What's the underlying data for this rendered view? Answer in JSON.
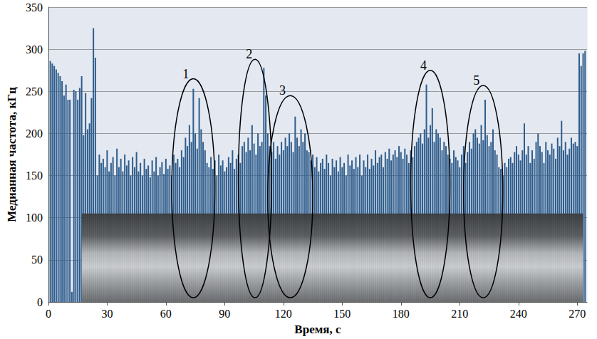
{
  "chart_data": {
    "type": "bar",
    "x_label": "Время, с",
    "y_label": "Медианная частота, кГц",
    "color": "#2f5d8c",
    "grid": true,
    "xlim": [
      0,
      275
    ],
    "xticks": [
      0,
      30,
      60,
      90,
      120,
      150,
      180,
      210,
      240,
      270
    ],
    "ylim": [
      0,
      350
    ],
    "yticks": [
      0,
      50,
      100,
      150,
      200,
      250,
      300,
      350
    ],
    "x": [
      1,
      2,
      3,
      4,
      5,
      6,
      7,
      8,
      9,
      10,
      11,
      12,
      13,
      14,
      15,
      16,
      17,
      18,
      19,
      20,
      21,
      22,
      23,
      24,
      25,
      26,
      27,
      28,
      29,
      30,
      31,
      32,
      33,
      34,
      35,
      36,
      37,
      38,
      39,
      40,
      41,
      42,
      43,
      44,
      45,
      46,
      47,
      48,
      49,
      50,
      51,
      52,
      53,
      54,
      55,
      56,
      57,
      58,
      59,
      60,
      61,
      62,
      63,
      64,
      65,
      66,
      67,
      68,
      69,
      70,
      71,
      72,
      73,
      74,
      75,
      76,
      77,
      78,
      79,
      80,
      81,
      82,
      83,
      84,
      85,
      86,
      87,
      88,
      89,
      90,
      91,
      92,
      93,
      94,
      95,
      96,
      97,
      98,
      99,
      100,
      101,
      102,
      103,
      104,
      105,
      106,
      107,
      108,
      109,
      110,
      111,
      112,
      113,
      114,
      115,
      116,
      117,
      118,
      119,
      120,
      121,
      122,
      123,
      124,
      125,
      126,
      127,
      128,
      129,
      130,
      131,
      132,
      133,
      134,
      135,
      136,
      137,
      138,
      139,
      140,
      141,
      142,
      143,
      144,
      145,
      146,
      147,
      148,
      149,
      150,
      151,
      152,
      153,
      154,
      155,
      156,
      157,
      158,
      159,
      160,
      161,
      162,
      163,
      164,
      165,
      166,
      167,
      168,
      169,
      170,
      171,
      172,
      173,
      174,
      175,
      176,
      177,
      178,
      179,
      180,
      181,
      182,
      183,
      184,
      185,
      186,
      187,
      188,
      189,
      190,
      191,
      192,
      193,
      194,
      195,
      196,
      197,
      198,
      199,
      200,
      201,
      202,
      203,
      204,
      205,
      206,
      207,
      208,
      209,
      210,
      211,
      212,
      213,
      214,
      215,
      216,
      217,
      218,
      219,
      220,
      221,
      222,
      223,
      224,
      225,
      226,
      227,
      228,
      229,
      230,
      231,
      232,
      233,
      234,
      235,
      236,
      237,
      238,
      239,
      240,
      241,
      242,
      243,
      244,
      245,
      246,
      247,
      248,
      249,
      250,
      251,
      252,
      253,
      254,
      255,
      256,
      257,
      258,
      259,
      260,
      261,
      262,
      263,
      264,
      265,
      266,
      267,
      268,
      269,
      270,
      271,
      272,
      273,
      274
    ],
    "values": [
      286,
      283,
      280,
      276,
      272,
      268,
      262,
      245,
      258,
      240,
      240,
      12,
      252,
      250,
      240,
      254,
      268,
      198,
      248,
      205,
      212,
      242,
      325,
      290,
      150,
      175,
      165,
      170,
      160,
      180,
      155,
      165,
      172,
      150,
      182,
      160,
      170,
      155,
      175,
      162,
      168,
      150,
      172,
      160,
      178,
      155,
      165,
      150,
      170,
      158,
      162,
      148,
      168,
      155,
      172,
      150,
      160,
      166,
      152,
      170,
      158,
      162,
      150,
      175,
      165,
      170,
      160,
      180,
      172,
      195,
      185,
      210,
      190,
      253,
      200,
      182,
      242,
      205,
      190,
      180,
      165,
      160,
      172,
      158,
      168,
      150,
      175,
      162,
      168,
      155,
      160,
      172,
      165,
      180,
      158,
      170,
      175,
      165,
      185,
      190,
      178,
      195,
      180,
      210,
      188,
      175,
      200,
      185,
      190,
      278,
      245,
      200,
      185,
      178,
      190,
      170,
      185,
      175,
      190,
      180,
      195,
      185,
      200,
      190,
      178,
      220,
      195,
      185,
      205,
      190,
      200,
      180,
      178,
      168,
      175,
      160,
      172,
      155,
      165,
      170,
      158,
      175,
      165,
      150,
      170,
      160,
      168,
      155,
      172,
      160,
      165,
      150,
      175,
      162,
      168,
      158,
      172,
      160,
      175,
      150,
      168,
      160,
      175,
      158,
      170,
      162,
      180,
      165,
      172,
      175,
      160,
      178,
      170,
      182,
      168,
      175,
      180,
      172,
      185,
      178,
      170,
      182,
      175,
      165,
      180,
      172,
      185,
      190,
      195,
      200,
      188,
      205,
      258,
      195,
      210,
      230,
      190,
      205,
      200,
      195,
      180,
      190,
      185,
      175,
      170,
      165,
      180,
      172,
      168,
      160,
      175,
      185,
      165,
      178,
      190,
      182,
      200,
      205,
      195,
      188,
      210,
      192,
      240,
      198,
      185,
      190,
      205,
      180,
      175,
      160,
      158,
      150,
      165,
      160,
      170,
      172,
      165,
      178,
      185,
      175,
      168,
      180,
      212,
      175,
      185,
      165,
      180,
      170,
      190,
      200,
      185,
      178,
      165,
      190,
      180,
      175,
      188,
      182,
      170,
      195,
      185,
      215,
      180,
      190,
      175,
      182,
      195,
      188,
      190,
      185,
      295,
      280,
      295,
      298
    ],
    "annotations": [
      {
        "text": "1",
        "x_range": [
          63,
          85
        ],
        "y_range": [
          5,
          265
        ]
      },
      {
        "text": "2",
        "x_range": [
          97,
          114
        ],
        "y_range": [
          5,
          288
        ]
      },
      {
        "text": "3",
        "x_range": [
          112,
          135
        ],
        "y_range": [
          5,
          245
        ]
      },
      {
        "text": "4",
        "x_range": [
          185,
          205
        ],
        "y_range": [
          5,
          275
        ]
      },
      {
        "text": "5",
        "x_range": [
          212,
          232
        ],
        "y_range": [
          5,
          257
        ]
      }
    ]
  }
}
